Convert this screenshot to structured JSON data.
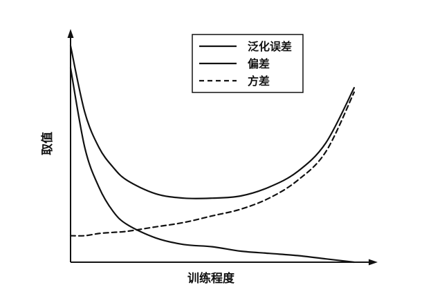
{
  "chart_data": {
    "type": "line",
    "title": "",
    "xlabel": "训练程度",
    "ylabel": "取值",
    "ticks": "none",
    "grid": false,
    "legend_position": "top-right",
    "xlim": [
      0,
      1
    ],
    "ylim": [
      0,
      1
    ],
    "x": [
      0,
      0.05,
      0.1,
      0.15,
      0.2,
      0.3,
      0.4,
      0.5,
      0.6,
      0.7,
      0.8,
      0.9,
      1.0
    ],
    "series": [
      {
        "name": "泛化误差",
        "style": "solid",
        "values": [
          0.98,
          0.68,
          0.52,
          0.43,
          0.37,
          0.31,
          0.29,
          0.29,
          0.3,
          0.34,
          0.41,
          0.54,
          0.79
        ]
      },
      {
        "name": "偏差",
        "style": "solid",
        "values": [
          0.88,
          0.52,
          0.34,
          0.23,
          0.17,
          0.11,
          0.08,
          0.07,
          0.05,
          0.04,
          0.03,
          0.015,
          0.0
        ]
      },
      {
        "name": "方差",
        "style": "dashed",
        "values": [
          0.12,
          0.12,
          0.13,
          0.135,
          0.14,
          0.16,
          0.18,
          0.21,
          0.24,
          0.29,
          0.37,
          0.5,
          0.77
        ]
      }
    ],
    "colors": {
      "line": "#111111",
      "axis": "#111111",
      "background": "#ffffff"
    }
  }
}
